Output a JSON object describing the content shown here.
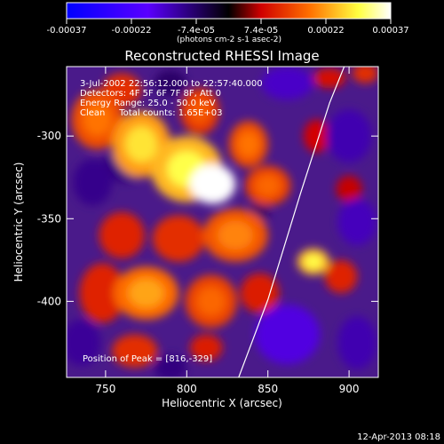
{
  "chart_data": {
    "type": "heatmap",
    "title": "Reconstructed RHESSI Image",
    "xlabel": "Heliocentric X (arcsec)",
    "ylabel": "Heliocentric Y (arcsec)",
    "xlim": [
      726,
      918
    ],
    "ylim": [
      -446,
      -258
    ],
    "x_ticks": [
      750,
      800,
      850,
      900
    ],
    "y_ticks": [
      -300,
      -350,
      -400
    ],
    "colorbar": {
      "ticks": [
        "-0.00037",
        "-0.00022",
        "-7.4e-05",
        "7.4e-05",
        "0.00022",
        "0.00037"
      ],
      "units": "(photons cm-2 s-1 asec-2)",
      "range": [
        -0.00037,
        0.00037
      ],
      "colors": [
        "#0000ff",
        "#5a00ff",
        "#000000",
        "#d00000",
        "#ff7000",
        "#ffff40",
        "#ffffff"
      ]
    },
    "annotations": [
      "3-Jul-2002 22:56:12.000 to 22:57:40.000",
      "Detectors: 4F 5F 6F 7F 8F, Att 0",
      "Energy Range: 25.0 - 50.0 keV",
      "Clean     Total counts: 1.65E+03",
      "Position of Peak = [816,-329]"
    ],
    "peak": {
      "x": 816,
      "y": -329
    },
    "blobs": [
      {
        "x": 816,
        "y": -329,
        "rx": 14,
        "ry": 12,
        "v": 0.00037
      },
      {
        "x": 800,
        "y": -320,
        "rx": 22,
        "ry": 20,
        "v": 0.00024
      },
      {
        "x": 772,
        "y": -305,
        "rx": 18,
        "ry": 20,
        "v": 0.00022
      },
      {
        "x": 745,
        "y": -290,
        "rx": 16,
        "ry": 18,
        "v": 0.00015
      },
      {
        "x": 760,
        "y": -272,
        "rx": 12,
        "ry": 10,
        "v": 0.00012
      },
      {
        "x": 808,
        "y": -285,
        "rx": 12,
        "ry": 14,
        "v": 0.00013
      },
      {
        "x": 838,
        "y": -305,
        "rx": 12,
        "ry": 14,
        "v": 0.00015
      },
      {
        "x": 850,
        "y": -330,
        "rx": 14,
        "ry": 12,
        "v": 0.00014
      },
      {
        "x": 830,
        "y": -360,
        "rx": 20,
        "ry": 16,
        "v": 0.00016
      },
      {
        "x": 795,
        "y": -362,
        "rx": 16,
        "ry": 14,
        "v": 0.00012
      },
      {
        "x": 760,
        "y": -360,
        "rx": 14,
        "ry": 14,
        "v": 0.00011
      },
      {
        "x": 775,
        "y": -395,
        "rx": 20,
        "ry": 16,
        "v": 0.00018
      },
      {
        "x": 748,
        "y": -395,
        "rx": 14,
        "ry": 18,
        "v": 0.00011
      },
      {
        "x": 815,
        "y": -400,
        "rx": 16,
        "ry": 16,
        "v": 0.00014
      },
      {
        "x": 845,
        "y": -395,
        "rx": 12,
        "ry": 12,
        "v": 0.0001
      },
      {
        "x": 878,
        "y": -376,
        "rx": 10,
        "ry": 8,
        "v": 0.00024
      },
      {
        "x": 895,
        "y": -385,
        "rx": 10,
        "ry": 10,
        "v": 0.00011
      },
      {
        "x": 768,
        "y": -430,
        "rx": 14,
        "ry": 10,
        "v": 0.00012
      },
      {
        "x": 812,
        "y": -428,
        "rx": 10,
        "ry": 8,
        "v": 0.0001
      },
      {
        "x": 880,
        "y": -300,
        "rx": 8,
        "ry": 10,
        "v": 8e-05
      },
      {
        "x": 900,
        "y": -332,
        "rx": 8,
        "ry": 8,
        "v": 7e-05
      },
      {
        "x": 910,
        "y": -262,
        "rx": 8,
        "ry": 6,
        "v": 0.00012
      },
      {
        "x": 888,
        "y": -265,
        "rx": 10,
        "ry": 6,
        "v": 9e-05
      },
      {
        "x": 762,
        "y": -318,
        "rx": 14,
        "ry": 10,
        "v": -8e-05
      },
      {
        "x": 862,
        "y": -268,
        "rx": 16,
        "ry": 10,
        "v": -0.00014
      },
      {
        "x": 900,
        "y": -300,
        "rx": 14,
        "ry": 16,
        "v": -0.00012
      },
      {
        "x": 905,
        "y": -352,
        "rx": 12,
        "ry": 14,
        "v": -0.00013
      },
      {
        "x": 862,
        "y": -420,
        "rx": 20,
        "ry": 18,
        "v": -0.00016
      },
      {
        "x": 905,
        "y": -425,
        "rx": 12,
        "ry": 16,
        "v": -0.00012
      },
      {
        "x": 735,
        "y": -425,
        "rx": 12,
        "ry": 14,
        "v": -0.0001
      },
      {
        "x": 742,
        "y": -328,
        "rx": 12,
        "ry": 14,
        "v": -9e-05
      },
      {
        "x": 790,
        "y": -440,
        "rx": 10,
        "ry": 8,
        "v": -8e-05
      },
      {
        "x": 845,
        "y": -345,
        "rx": 6,
        "ry": 8,
        "v": -6e-05
      },
      {
        "x": 790,
        "y": -268,
        "rx": 10,
        "ry": 8,
        "v": -6e-05
      }
    ],
    "limb_line": [
      [
        832,
        -446
      ],
      [
        850,
        -399
      ],
      [
        870,
        -335
      ],
      [
        888,
        -280
      ],
      [
        897,
        -258
      ]
    ]
  },
  "footer": {
    "timestamp": "12-Apr-2013 08:18"
  }
}
